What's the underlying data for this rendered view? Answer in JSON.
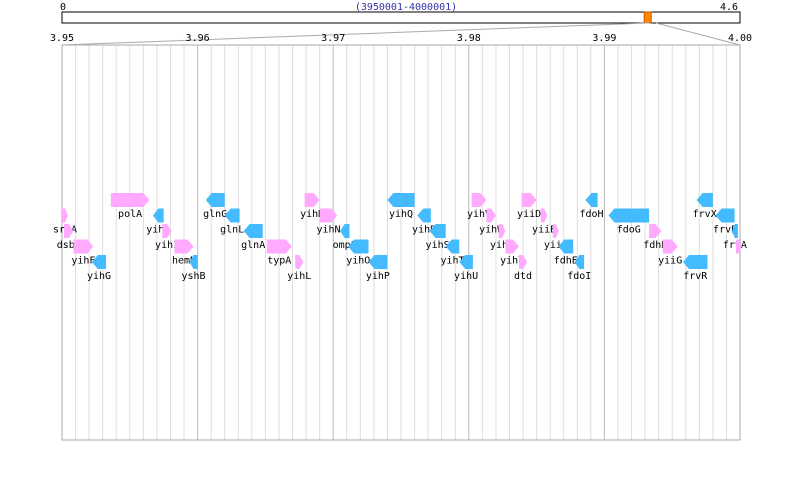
{
  "overview": {
    "start_label": "0",
    "end_label": "4.6",
    "range_label": "(3950001-4000001)",
    "genome_max": 4.6,
    "window_start": 3.95,
    "window_end": 4.0
  },
  "ruler": {
    "tick_labels": [
      "3.95",
      "3.96",
      "3.97",
      "3.98",
      "3.99",
      "4.00"
    ]
  },
  "colors": {
    "forward": "#ffaaff",
    "reverse": "#44bbff",
    "frame": "#aaaaaa",
    "minor_grid": "#dddddd",
    "major_grid": "#bbbbbb",
    "window_marker": "#ff8800",
    "range_text": "#3333aa"
  },
  "genes": [
    {
      "name": "srkA",
      "strand": "+",
      "start": 3950001,
      "end": 3950150,
      "row": 1
    },
    {
      "name": "dsbA",
      "strand": "+",
      "start": 3950150,
      "end": 3950850,
      "row": 2
    },
    {
      "name": "yihF",
      "strand": "+",
      "start": 3950850,
      "end": 3952300,
      "row": 3
    },
    {
      "name": "yihG",
      "strand": "-",
      "start": 3952200,
      "end": 3953250,
      "row": 4
    },
    {
      "name": "polA",
      "strand": "+",
      "start": 3953600,
      "end": 3956450,
      "row": 0
    },
    {
      "name": "yihA",
      "strand": "-",
      "start": 3956700,
      "end": 3957500,
      "row": 1
    },
    {
      "name": "yihI",
      "strand": "+",
      "start": 3957400,
      "end": 3958100,
      "row": 2
    },
    {
      "name": "hemN",
      "strand": "+",
      "start": 3958300,
      "end": 3959700,
      "row": 3
    },
    {
      "name": "yshB",
      "strand": "-",
      "start": 3959400,
      "end": 3960000,
      "row": 4
    },
    {
      "name": "glnG",
      "strand": "-",
      "start": 3960600,
      "end": 3962000,
      "row": 0
    },
    {
      "name": "glnL",
      "strand": "-",
      "start": 3962000,
      "end": 3963100,
      "row": 1
    },
    {
      "name": "glnA",
      "strand": "-",
      "start": 3963400,
      "end": 3964800,
      "row": 2
    },
    {
      "name": "typA",
      "strand": "+",
      "start": 3965100,
      "end": 3966950,
      "row": 3
    },
    {
      "name": "yihL",
      "strand": "+",
      "start": 3967200,
      "end": 3967800,
      "row": 4
    },
    {
      "name": "yihM",
      "strand": "+",
      "start": 3967900,
      "end": 3969000,
      "row": 0
    },
    {
      "name": "yihN",
      "strand": "+",
      "start": 3969000,
      "end": 3970300,
      "row": 1
    },
    {
      "name": "ompL",
      "strand": "-",
      "start": 3970500,
      "end": 3971200,
      "row": 2
    },
    {
      "name": "yihO",
      "strand": "-",
      "start": 3971100,
      "end": 3972600,
      "row": 3
    },
    {
      "name": "yihP",
      "strand": "-",
      "start": 3972600,
      "end": 3974000,
      "row": 4
    },
    {
      "name": "yihQ",
      "strand": "-",
      "start": 3974000,
      "end": 3976000,
      "row": 0
    },
    {
      "name": "yihR",
      "strand": "-",
      "start": 3976200,
      "end": 3977200,
      "row": 1
    },
    {
      "name": "yihS",
      "strand": "-",
      "start": 3977100,
      "end": 3978300,
      "row": 2
    },
    {
      "name": "yihT",
      "strand": "-",
      "start": 3978300,
      "end": 3979300,
      "row": 3
    },
    {
      "name": "yihU",
      "strand": "-",
      "start": 3979300,
      "end": 3980300,
      "row": 4
    },
    {
      "name": "yihV",
      "strand": "+",
      "start": 3980200,
      "end": 3981300,
      "row": 0
    },
    {
      "name": "yihW",
      "strand": "+",
      "start": 3981300,
      "end": 3982000,
      "row": 1
    },
    {
      "name": "yihX",
      "strand": "+",
      "start": 3982200,
      "end": 3982700,
      "row": 2
    },
    {
      "name": "yihY",
      "strand": "+",
      "start": 3982700,
      "end": 3983700,
      "row": 3
    },
    {
      "name": "dtd",
      "strand": "+",
      "start": 3983700,
      "end": 3984300,
      "row": 4
    },
    {
      "name": "yiiD",
      "strand": "+",
      "start": 3983900,
      "end": 3985000,
      "row": 0
    },
    {
      "name": "yiiE",
      "strand": "+",
      "start": 3985300,
      "end": 3985800,
      "row": 1
    },
    {
      "name": "yiiF",
      "strand": "+",
      "start": 3986200,
      "end": 3986600,
      "row": 2
    },
    {
      "name": "fdhE",
      "strand": "-",
      "start": 3986600,
      "end": 3987700,
      "row": 3
    },
    {
      "name": "fdoI",
      "strand": "-",
      "start": 3987800,
      "end": 3988500,
      "row": 4
    },
    {
      "name": "fdoH",
      "strand": "-",
      "start": 3988600,
      "end": 3989500,
      "row": 0
    },
    {
      "name": "fdoG",
      "strand": "-",
      "start": 3990300,
      "end": 3993300,
      "row": 1
    },
    {
      "name": "fdhD",
      "strand": "+",
      "start": 3993300,
      "end": 3994200,
      "row": 2
    },
    {
      "name": "yiiG",
      "strand": "+",
      "start": 3994300,
      "end": 3995400,
      "row": 3
    },
    {
      "name": "frvR",
      "strand": "-",
      "start": 3995800,
      "end": 3997600,
      "row": 4
    },
    {
      "name": "frvX",
      "strand": "-",
      "start": 3996800,
      "end": 3998000,
      "row": 0
    },
    {
      "name": "frvB",
      "strand": "-",
      "start": 3998200,
      "end": 3999600,
      "row": 1
    },
    {
      "name": "frvA",
      "strand": "-",
      "start": 3999400,
      "end": 3999800,
      "row": 2
    },
    {
      "name": "",
      "strand": "+",
      "start": 3999700,
      "end": 4000001,
      "row": 3
    }
  ]
}
